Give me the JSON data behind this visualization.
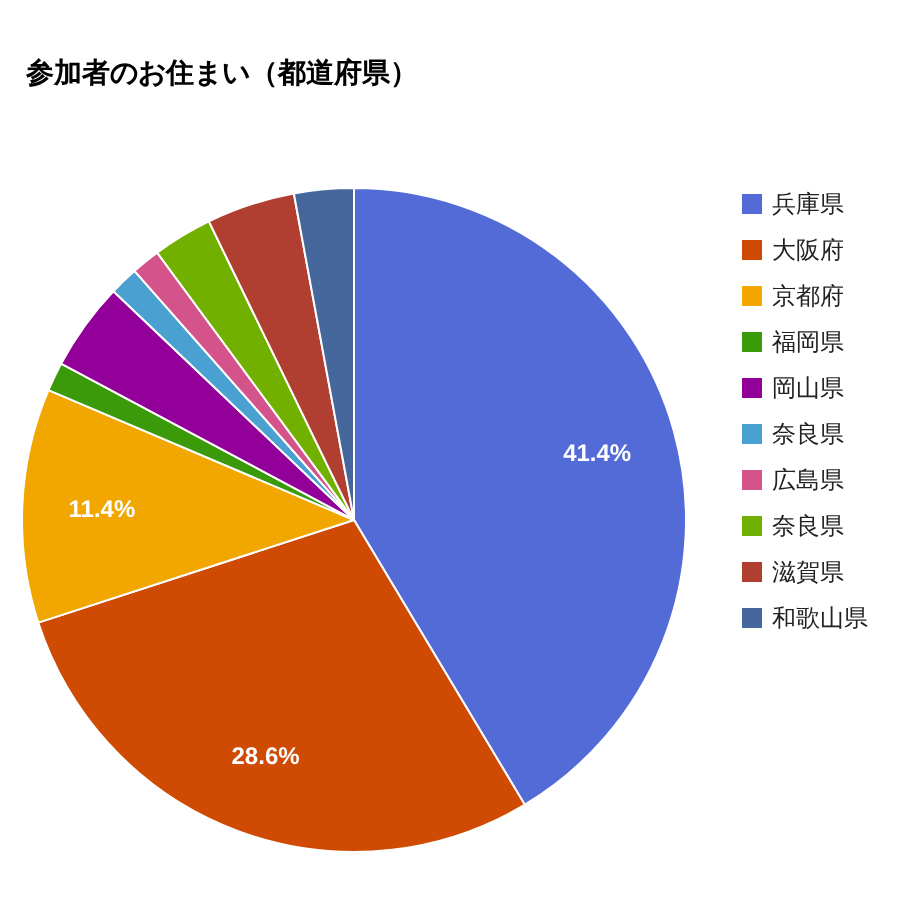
{
  "chart_data": {
    "type": "pie",
    "title": "参加者のお住まい（都道府県）",
    "categories": [
      "兵庫県",
      "大阪府",
      "京都府",
      "福岡県",
      "岡山県",
      "奈良県",
      "広島県",
      "奈良県",
      "滋賀県",
      "和歌山県"
    ],
    "values": [
      41.4,
      28.6,
      11.4,
      1.4,
      4.3,
      1.4,
      1.4,
      2.9,
      4.3,
      2.9
    ],
    "colors": [
      "#536bd6",
      "#cf4a02",
      "#f2a600",
      "#3a9a0a",
      "#930099",
      "#4aa0d0",
      "#d4538a",
      "#72b000",
      "#b03e31",
      "#46679c"
    ],
    "value_labels": [
      "41.4%",
      "28.6%",
      "11.4%",
      null,
      null,
      null,
      null,
      null,
      null,
      null
    ],
    "legend": "top right"
  }
}
